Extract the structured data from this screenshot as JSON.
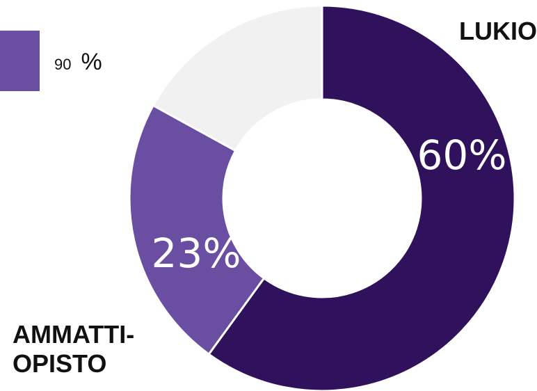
{
  "legend": {
    "value": "90",
    "unit": "%",
    "color": "#6a4ea1"
  },
  "categories": {
    "lukio": "LUKIO",
    "ammattiopisto_line1": "AMMATTI-",
    "ammattiopisto_line2": "OPISTO"
  },
  "chart_data": {
    "type": "pie",
    "donut": true,
    "slices": [
      {
        "name": "LUKIO",
        "value": 60,
        "label": "60%",
        "color": "#30115b"
      },
      {
        "name": "AMMATTIOPISTO",
        "value": 23,
        "label": "23%",
        "color": "#6a4ea1"
      },
      {
        "name": "",
        "value": 17,
        "label": "",
        "color": "#f1f1f1"
      }
    ]
  }
}
